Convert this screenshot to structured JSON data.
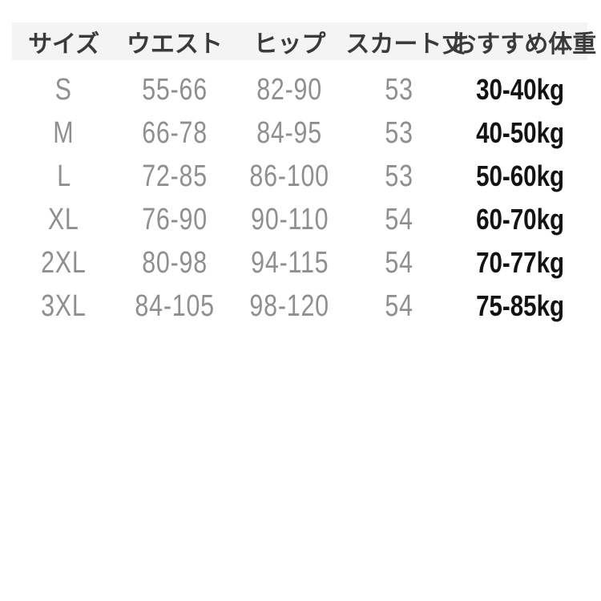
{
  "table": {
    "headers": [
      "サイズ",
      "ウエスト",
      "ヒップ",
      "スカート丈",
      "おすすめ体重"
    ],
    "rows": [
      {
        "size": "S",
        "waist": "55-66",
        "hip": "82-90",
        "skirt_length": "53",
        "recommended_weight": "30-40kg"
      },
      {
        "size": "M",
        "waist": "66-78",
        "hip": "84-95",
        "skirt_length": "53",
        "recommended_weight": "40-50kg"
      },
      {
        "size": "L",
        "waist": "72-85",
        "hip": "86-100",
        "skirt_length": "53",
        "recommended_weight": "50-60kg"
      },
      {
        "size": "XL",
        "waist": "76-90",
        "hip": "90-110",
        "skirt_length": "54",
        "recommended_weight": "60-70kg"
      },
      {
        "size": "2XL",
        "waist": "80-98",
        "hip": "94-115",
        "skirt_length": "54",
        "recommended_weight": "70-77kg"
      },
      {
        "size": "3XL",
        "waist": "84-105",
        "hip": "98-120",
        "skirt_length": "54",
        "recommended_weight": "75-85kg"
      }
    ]
  },
  "colors": {
    "header_background": "#f4f4f4",
    "header_text": "#3a3a3a",
    "measurement_text": "#8f8f8f",
    "weight_text": "#131313",
    "page_background": "#ffffff"
  }
}
